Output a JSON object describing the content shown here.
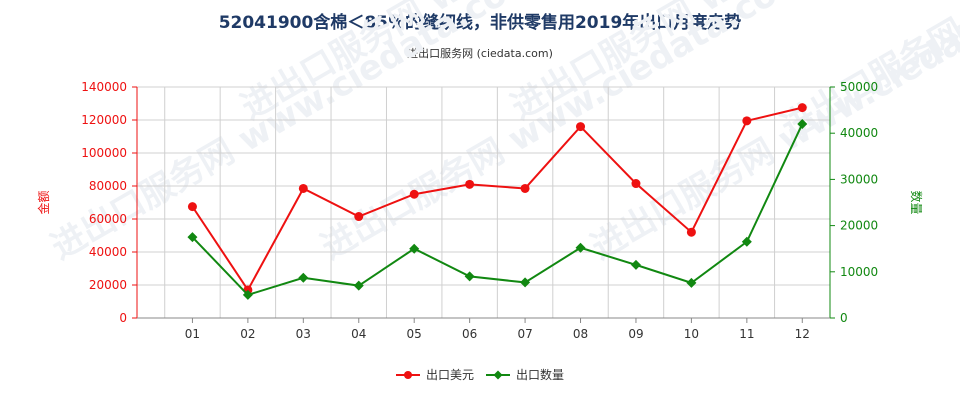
{
  "title": "52041900含棉＜85％的缝纫线，非供零售用2019年出口月度走势",
  "subtitle": "进出口服务网 (ciedata.com)",
  "watermark": "进出口服务网 www.ciedata.com",
  "colors": {
    "usd": "#ee1111",
    "qty": "#118811",
    "grid": "#d0d0d0",
    "axis_left": "#ee1111",
    "axis_right": "#118811"
  },
  "chart_data": {
    "type": "line",
    "categories": [
      "01",
      "02",
      "03",
      "04",
      "05",
      "06",
      "07",
      "08",
      "09",
      "10",
      "11",
      "12"
    ],
    "series": [
      {
        "name": "出口美元",
        "axis": "left",
        "values": [
          67500,
          17000,
          78500,
          61500,
          75000,
          81000,
          78500,
          116000,
          81500,
          52000,
          119500,
          127500
        ]
      },
      {
        "name": "出口数量",
        "axis": "right",
        "values": [
          17500,
          5000,
          8700,
          7000,
          15000,
          9000,
          7700,
          15200,
          11500,
          7600,
          16500,
          42000
        ]
      }
    ],
    "y_left": {
      "label": "金额",
      "ylim": [
        0,
        140000
      ],
      "ticks": [
        "0",
        "20000",
        "40000",
        "60000",
        "80000",
        "100000",
        "120000",
        "140000"
      ]
    },
    "y_right": {
      "label": "数量",
      "ylim": [
        0,
        50000
      ],
      "ticks": [
        "0",
        "10000",
        "20000",
        "30000",
        "40000",
        "50000"
      ]
    },
    "grid": true,
    "legend_position": "bottom-center"
  }
}
